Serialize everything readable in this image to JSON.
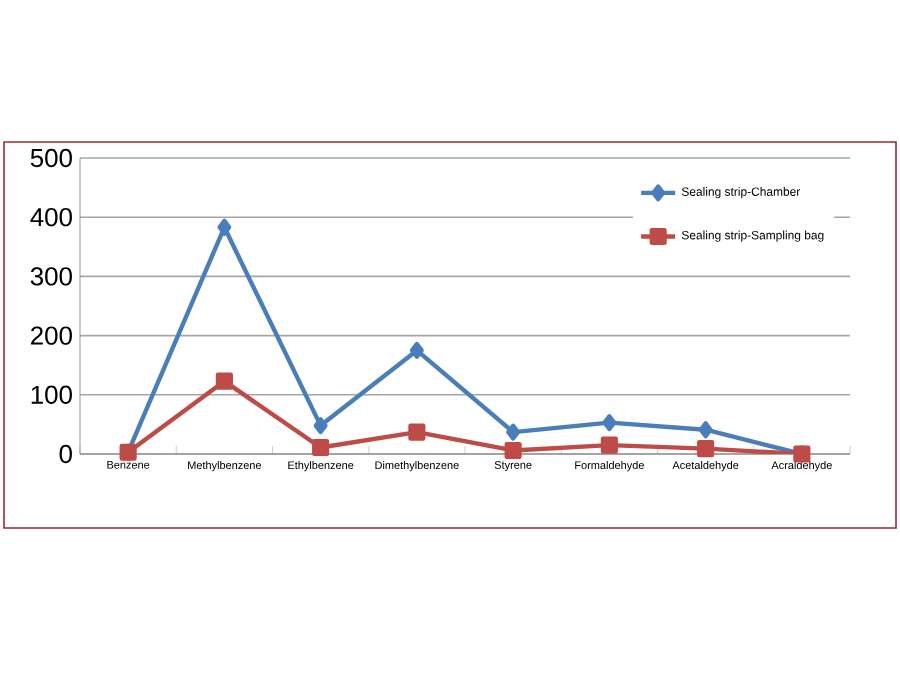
{
  "chart_data": {
    "type": "line",
    "categories": [
      "Benzene",
      "Methylbenzene",
      "Ethylbenzene",
      "Dimethylbenzene",
      "Styrene",
      "Formaldehyde",
      "Acetaldehyde",
      "Acraldehyde"
    ],
    "series": [
      {
        "name": "Sealing strip-Chamber",
        "color": "#4a7ebb",
        "marker": "diamond",
        "values": [
          3,
          383,
          48,
          175,
          37,
          53,
          41,
          0
        ]
      },
      {
        "name": "Sealing strip-Sampling bag",
        "color": "#be4b48",
        "marker": "square",
        "values": [
          3,
          123,
          11,
          37,
          6,
          15,
          9,
          0
        ]
      }
    ],
    "ylim": [
      0,
      500
    ],
    "yticks": [
      0,
      100,
      200,
      300,
      400,
      500
    ],
    "grid": "y",
    "legend": "top right",
    "line_style": "solid"
  }
}
